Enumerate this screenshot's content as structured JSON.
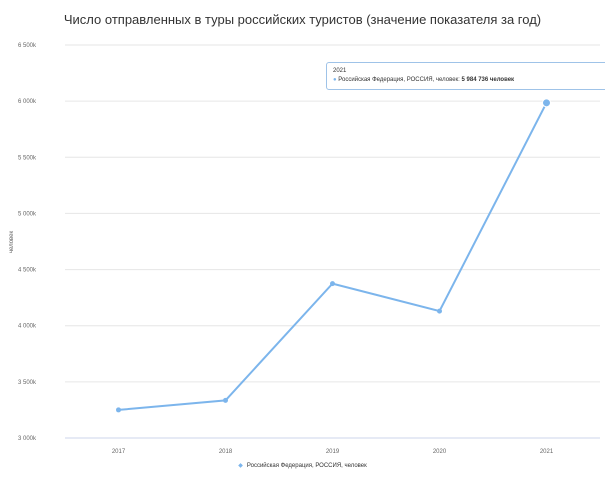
{
  "chart_data": {
    "type": "line",
    "title": "Число отправленных в туры российских туристов (значение показателя за год)",
    "ylabel": "человек",
    "x": [
      "2017",
      "2018",
      "2019",
      "2020",
      "2021"
    ],
    "y_ticks": [
      "3 000k",
      "3 500k",
      "4 000k",
      "4 500k",
      "5 000k",
      "5 500k",
      "6 000k",
      "6 500k"
    ],
    "ylim": [
      3000000,
      6500000
    ],
    "grid": true,
    "series": [
      {
        "name": "Российская Федерация, РОССИЯ, человек",
        "values": [
          3250000,
          3335000,
          4375000,
          4130000,
          5985000
        ],
        "color": "#7cb5ec"
      }
    ],
    "legend_position": "bottom"
  },
  "tooltip": {
    "year": "2021",
    "series_label": "Российская Федерация, РОССИЯ, человек:",
    "value": "5 984 736 человек"
  }
}
